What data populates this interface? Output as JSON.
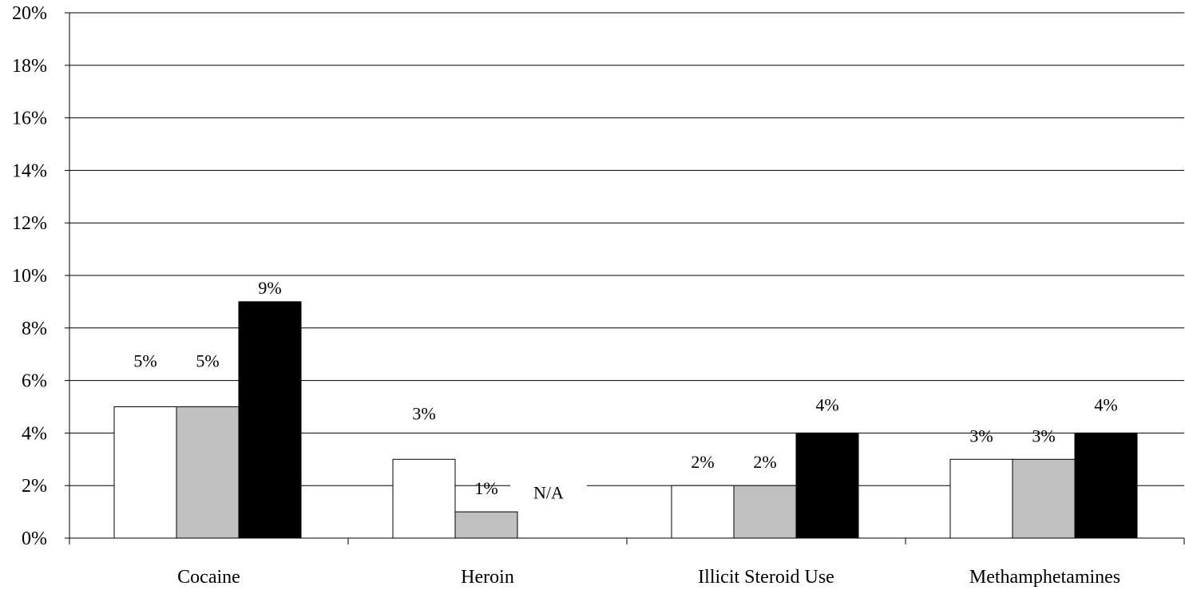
{
  "chart_data": {
    "type": "bar",
    "title": "",
    "xlabel": "",
    "ylabel": "",
    "ylim": [
      0,
      20
    ],
    "y_ticks": [
      "0%",
      "2%",
      "4%",
      "6%",
      "8%",
      "10%",
      "12%",
      "14%",
      "16%",
      "18%",
      "20%"
    ],
    "grid": true,
    "categories": [
      "Cocaine",
      "Heroin",
      "Illicit Steroid Use",
      "Methamphetamines"
    ],
    "series": [
      {
        "values": [
          5,
          3,
          2,
          3
        ],
        "labels": [
          "5%",
          "3%",
          "2%",
          "3%"
        ],
        "color": "#ffffff"
      },
      {
        "values": [
          5,
          1,
          2,
          3
        ],
        "labels": [
          "5%",
          "1%",
          "2%",
          "3%"
        ],
        "color": "#c0c0c0"
      },
      {
        "values": [
          9,
          null,
          4,
          4
        ],
        "labels": [
          "9%",
          "N/A",
          "4%",
          "4%"
        ],
        "color": "#000000"
      }
    ]
  }
}
